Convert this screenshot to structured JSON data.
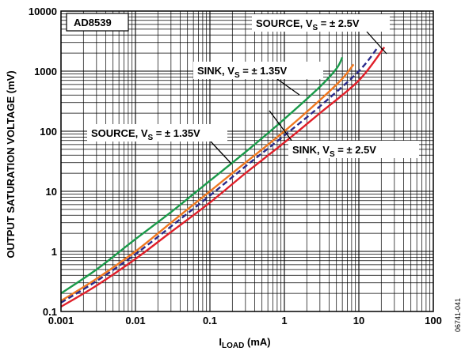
{
  "chart_data": {
    "type": "line",
    "title": "",
    "xlabel": "I_LOAD (mA)",
    "xlabel_main": "I",
    "xlabel_sub": "LOAD",
    "xlabel_tail": " (mA)",
    "ylabel": "OUTPUT SATURATION VOLTAGE (mV)",
    "x_scale": "log",
    "y_scale": "log",
    "xlim": [
      0.001,
      100
    ],
    "ylim": [
      0.1,
      10000
    ],
    "x_ticks": [
      "0.001",
      "0.01",
      "0.1",
      "1",
      "10",
      "100"
    ],
    "y_ticks": [
      "0.1",
      "1",
      "10",
      "100",
      "1000",
      "10000"
    ],
    "grid": true,
    "part_label": "AD8539",
    "figure_code": "06741-041",
    "annotations": [
      {
        "text": "SOURCE, V",
        "sub": "S",
        "tail": " = ± 2.5V",
        "series": "source_2v5"
      },
      {
        "text": "SINK, V",
        "sub": "S",
        "tail": " = ± 1.35V",
        "series": "sink_1v35"
      },
      {
        "text": "SOURCE, V",
        "sub": "S",
        "tail": " = ± 1.35V",
        "series": "source_1v35"
      },
      {
        "text": "SINK, V",
        "sub": "S",
        "tail": " = ± 2.5V",
        "series": "sink_2v5"
      }
    ],
    "series": [
      {
        "id": "source_1v35",
        "color": "#1a9a4a",
        "dashed": false,
        "x": [
          0.001,
          0.003,
          0.01,
          0.03,
          0.1,
          0.3,
          1,
          3,
          5,
          6
        ],
        "y": [
          0.2,
          0.5,
          1.6,
          4.5,
          15,
          45,
          160,
          550,
          1100,
          1700
        ]
      },
      {
        "id": "sink_1v35",
        "color": "#f07820",
        "dashed": false,
        "x": [
          0.001,
          0.003,
          0.01,
          0.03,
          0.1,
          0.3,
          1,
          3,
          6,
          8.5
        ],
        "y": [
          0.15,
          0.35,
          1.0,
          3.0,
          10,
          30,
          100,
          330,
          750,
          1300
        ]
      },
      {
        "id": "source_2v5",
        "color": "#2a2a8a",
        "dashed": true,
        "x": [
          0.001,
          0.003,
          0.01,
          0.03,
          0.1,
          0.3,
          1,
          3,
          10,
          18
        ],
        "y": [
          0.14,
          0.32,
          0.9,
          2.6,
          8.5,
          26,
          85,
          260,
          1000,
          2500
        ]
      },
      {
        "id": "sink_2v5",
        "color": "#e0202a",
        "dashed": false,
        "x": [
          0.001,
          0.003,
          0.01,
          0.03,
          0.1,
          0.3,
          1,
          3,
          10,
          22
        ],
        "y": [
          0.12,
          0.27,
          0.75,
          2.1,
          6.5,
          20,
          65,
          200,
          700,
          2500
        ]
      }
    ]
  }
}
